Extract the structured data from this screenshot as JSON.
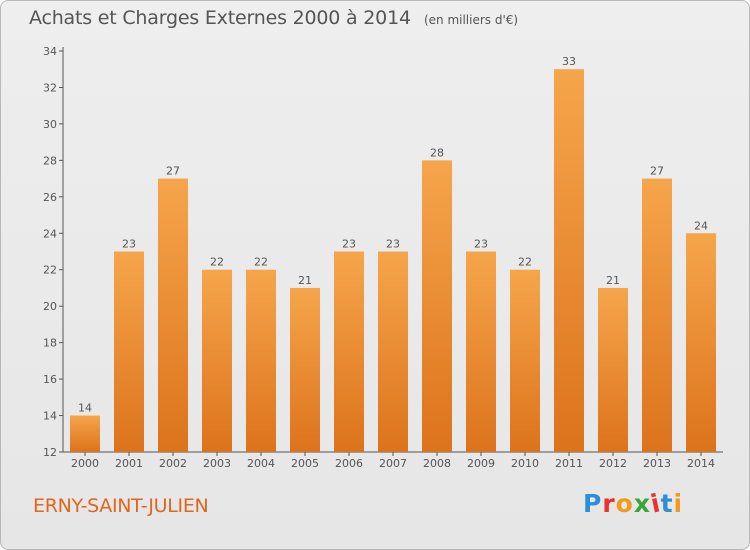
{
  "header": {
    "title": "Achats et Charges Externes 2000 à 2014",
    "unit": "(en milliers d'€)"
  },
  "footer": {
    "place_name": "ERNY-SAINT-JULIEN",
    "logo_text": "Proxiti",
    "logo_colors": [
      "#2a8fd6",
      "#e8322b",
      "#f39a1c",
      "#3aa53a",
      "#e8322b",
      "#2a8fd6",
      "#f39a1c"
    ]
  },
  "colors": {
    "bar_light": "#f6a54b",
    "bar_dark": "#dc731c",
    "axis": "#555555",
    "label": "#555555"
  },
  "chart_data": {
    "type": "bar",
    "categories": [
      "2000",
      "2001",
      "2002",
      "2003",
      "2004",
      "2005",
      "2006",
      "2007",
      "2008",
      "2009",
      "2010",
      "2011",
      "2012",
      "2013",
      "2014"
    ],
    "values": [
      14,
      23,
      27,
      22,
      22,
      21,
      23,
      23,
      28,
      23,
      22,
      33,
      21,
      27,
      24
    ],
    "ylim": [
      12,
      34
    ],
    "yticks": [
      12,
      14,
      16,
      18,
      20,
      22,
      24,
      26,
      28,
      30,
      32,
      34
    ],
    "title": "Achats et Charges Externes 2000 à 2014",
    "xlabel": "",
    "ylabel": "",
    "data_labels": true,
    "grid": false
  }
}
